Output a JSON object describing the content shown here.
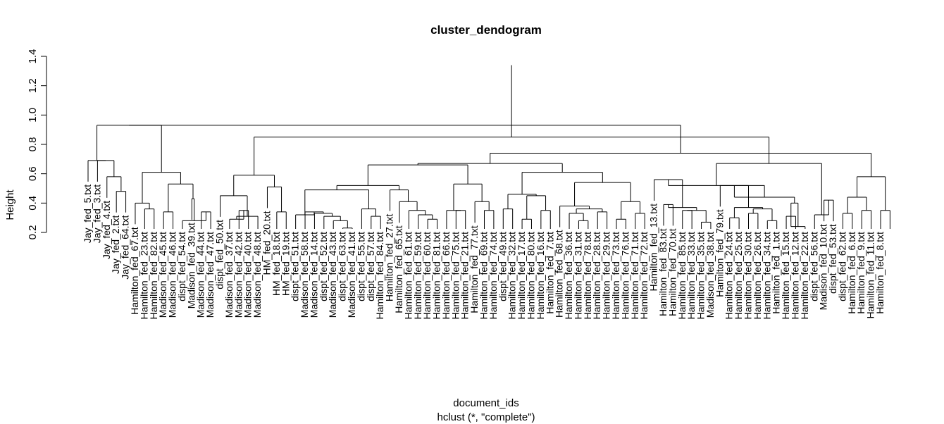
{
  "chart_data": {
    "type": "dendrogram",
    "title": "cluster_dendogram",
    "xlabel": "document_ids",
    "subtitle": "hclust (*, \"complete\")",
    "ylabel": "Height",
    "ylim": [
      0.2,
      1.4
    ],
    "yticks": [
      0.2,
      0.4,
      0.6,
      0.8,
      1.0,
      1.2,
      1.4
    ],
    "leaves": [
      {
        "label": "Jay_fed_5.txt",
        "h": 0.2
      },
      {
        "label": "Jay_fed_3.txt",
        "h": 0.2
      },
      {
        "label": "Jay_fed_4.txt",
        "h": 0.2
      },
      {
        "label": "Jay_fed_2.txt",
        "h": 0.2
      },
      {
        "label": "Jay_fed_64.txt",
        "h": 0.2
      },
      {
        "label": "Hamilton_fed_67.txt",
        "h": 0.2
      },
      {
        "label": "Hamilton_fed_23.txt",
        "h": 0.2
      },
      {
        "label": "Hamilton_fed_82.txt",
        "h": 0.2
      },
      {
        "label": "Madison_fed_45.txt",
        "h": 0.2
      },
      {
        "label": "Madison_fed_46.txt",
        "h": 0.2
      },
      {
        "label": "dispt_fed_54.txt",
        "h": 0.2
      },
      {
        "label": "Madison_fed_39.txt",
        "h": 0.2
      },
      {
        "label": "Madison_fed_44.txt",
        "h": 0.2
      },
      {
        "label": "Madison_fed_47.txt",
        "h": 0.2
      },
      {
        "label": "dispt_fed_50.txt",
        "h": 0.2
      },
      {
        "label": "Madison_fed_37.txt",
        "h": 0.2
      },
      {
        "label": "Madison_fed_42.txt",
        "h": 0.2
      },
      {
        "label": "Madison_fed_40.txt",
        "h": 0.2
      },
      {
        "label": "Madison_fed_48.txt",
        "h": 0.2
      },
      {
        "label": "HM_fed_20.txt",
        "h": 0.2
      },
      {
        "label": "HM_fed_18.txt",
        "h": 0.2
      },
      {
        "label": "HM_fed_19.txt",
        "h": 0.2
      },
      {
        "label": "dispt_fed_51.txt",
        "h": 0.2
      },
      {
        "label": "Madison_fed_58.txt",
        "h": 0.2
      },
      {
        "label": "Madison_fed_14.txt",
        "h": 0.2
      },
      {
        "label": "dispt_fed_52.txt",
        "h": 0.2
      },
      {
        "label": "Madison_fed_43.txt",
        "h": 0.2
      },
      {
        "label": "dispt_fed_63.txt",
        "h": 0.2
      },
      {
        "label": "Madison_fed_41.txt",
        "h": 0.2
      },
      {
        "label": "dispt_fed_55.txt",
        "h": 0.2
      },
      {
        "label": "dispt_fed_57.txt",
        "h": 0.2
      },
      {
        "label": "Hamilton_fed_84.txt",
        "h": 0.2
      },
      {
        "label": "Hamilton_fed_27.txt",
        "h": 0.2
      },
      {
        "label": "Hamilton_fed_65.txt",
        "h": 0.2
      },
      {
        "label": "Hamilton_fed_61.txt",
        "h": 0.2
      },
      {
        "label": "Hamilton_fed_59.txt",
        "h": 0.2
      },
      {
        "label": "Hamilton_fed_60.txt",
        "h": 0.2
      },
      {
        "label": "Hamilton_fed_81.txt",
        "h": 0.2
      },
      {
        "label": "Hamilton_fed_66.txt",
        "h": 0.2
      },
      {
        "label": "Hamilton_fed_75.txt",
        "h": 0.2
      },
      {
        "label": "Hamilton_fed_21.txt",
        "h": 0.2
      },
      {
        "label": "Hamilton_fed_77.txt",
        "h": 0.2
      },
      {
        "label": "Hamilton_fed_69.txt",
        "h": 0.2
      },
      {
        "label": "Hamilton_fed_74.txt",
        "h": 0.2
      },
      {
        "label": "dispt_fed_49.txt",
        "h": 0.2
      },
      {
        "label": "Hamilton_fed_32.txt",
        "h": 0.2
      },
      {
        "label": "Hamilton_fed_17.txt",
        "h": 0.2
      },
      {
        "label": "Hamilton_fed_80.txt",
        "h": 0.2
      },
      {
        "label": "Hamilton_fed_16.txt",
        "h": 0.2
      },
      {
        "label": "Hamilton_fed_7.txt",
        "h": 0.2
      },
      {
        "label": "Hamilton_fed_68.txt",
        "h": 0.2
      },
      {
        "label": "Hamilton_fed_36.txt",
        "h": 0.2
      },
      {
        "label": "Hamilton_fed_31.txt",
        "h": 0.2
      },
      {
        "label": "Hamilton_fed_78.txt",
        "h": 0.2
      },
      {
        "label": "Hamilton_fed_28.txt",
        "h": 0.2
      },
      {
        "label": "Hamilton_fed_29.txt",
        "h": 0.2
      },
      {
        "label": "Hamilton_fed_73.txt",
        "h": 0.2
      },
      {
        "label": "Hamilton_fed_76.txt",
        "h": 0.2
      },
      {
        "label": "Hamilton_fed_71.txt",
        "h": 0.2
      },
      {
        "label": "Hamilton_fed_72.txt",
        "h": 0.2
      },
      {
        "label": "Hamilton_fed_13.txt",
        "h": 0.2
      },
      {
        "label": "Hamilton_fed_83.txt",
        "h": 0.2
      },
      {
        "label": "Hamilton_fed_70.txt",
        "h": 0.2
      },
      {
        "label": "Hamilton_fed_85.txt",
        "h": 0.2
      },
      {
        "label": "Hamilton_fed_33.txt",
        "h": 0.2
      },
      {
        "label": "Hamilton_fed_35.txt",
        "h": 0.2
      },
      {
        "label": "Madison_fed_38.txt",
        "h": 0.2
      },
      {
        "label": "Hamilton_fed_79.txt",
        "h": 0.2
      },
      {
        "label": "Hamilton_fed_24.txt",
        "h": 0.2
      },
      {
        "label": "Hamilton_fed_25.txt",
        "h": 0.2
      },
      {
        "label": "Hamilton_fed_30.txt",
        "h": 0.2
      },
      {
        "label": "Hamilton_fed_26.txt",
        "h": 0.2
      },
      {
        "label": "Hamilton_fed_34.txt",
        "h": 0.2
      },
      {
        "label": "Hamilton_fed_1.txt",
        "h": 0.2
      },
      {
        "label": "Hamilton_fed_15.txt",
        "h": 0.2
      },
      {
        "label": "Hamilton_fed_12.txt",
        "h": 0.2
      },
      {
        "label": "Hamilton_fed_22.txt",
        "h": 0.2
      },
      {
        "label": "dispt_fed_56.txt",
        "h": 0.2
      },
      {
        "label": "Madison_fed_10.txt",
        "h": 0.2
      },
      {
        "label": "dispt_fed_53.txt",
        "h": 0.2
      },
      {
        "label": "dispt_fed_62.txt",
        "h": 0.2
      },
      {
        "label": "Hamilton_fed_6.txt",
        "h": 0.2
      },
      {
        "label": "Hamilton_fed_9.txt",
        "h": 0.2
      },
      {
        "label": "Hamilton_fed_11.txt",
        "h": 0.2
      },
      {
        "label": "Hamilton_fed_8.txt",
        "h": 0.2
      }
    ],
    "merges": [
      [
        3,
        4,
        0.48
      ],
      [
        2,
        "n0",
        0.58
      ],
      [
        1,
        "n1",
        0.69
      ],
      [
        0,
        "n2",
        0.69
      ],
      [
        6,
        7,
        0.36
      ],
      [
        5,
        "n4",
        0.4
      ],
      [
        8,
        9,
        0.34
      ],
      [
        12,
        13,
        0.34
      ],
      [
        10,
        "n7",
        0.28
      ],
      [
        11,
        "n8",
        0.43
      ],
      [
        "n6",
        "n9",
        0.53
      ],
      [
        "n5",
        "n10",
        0.61
      ],
      [
        "n3",
        "n11",
        0.93
      ],
      [
        16,
        17,
        0.35
      ],
      [
        15,
        "n13",
        0.29
      ],
      [
        18,
        "n14",
        0.31
      ],
      [
        14,
        "n15",
        0.45
      ],
      [
        20,
        21,
        0.34
      ],
      [
        19,
        "n17",
        0.51
      ],
      [
        "n16",
        "n18",
        0.59
      ],
      [
        27,
        28,
        0.23
      ],
      [
        26,
        "n20",
        0.28
      ],
      [
        25,
        "n21",
        0.31
      ],
      [
        24,
        "n22",
        0.33
      ],
      [
        23,
        "n23",
        0.34
      ],
      [
        22,
        "n24",
        0.32
      ],
      [
        30,
        31,
        0.31
      ],
      [
        29,
        "n26",
        0.36
      ],
      [
        "n25",
        "n27",
        0.49
      ],
      [
        36,
        37,
        0.29
      ],
      [
        35,
        "n29",
        0.32
      ],
      [
        34,
        "n30",
        0.35
      ],
      [
        33,
        "n31",
        0.41
      ],
      [
        32,
        "n32",
        0.49
      ],
      [
        "n28",
        "n33",
        0.52
      ],
      [
        39,
        40,
        0.35
      ],
      [
        42,
        43,
        0.35
      ],
      [
        41,
        "n36",
        0.41
      ],
      [
        38,
        "n35",
        0.35
      ],
      [
        "n38",
        "n37",
        0.53
      ],
      [
        "n34",
        "n39",
        0.66
      ],
      [
        44,
        45,
        0.36
      ],
      [
        46,
        47,
        0.29
      ],
      [
        48,
        49,
        0.35
      ],
      [
        "n42",
        "n43",
        0.45
      ],
      [
        "n41",
        "n44",
        0.46
      ],
      [
        52,
        53,
        0.28
      ],
      [
        51,
        "n46",
        0.33
      ],
      [
        54,
        55,
        0.34
      ],
      [
        "n47",
        "n48",
        0.36
      ],
      [
        50,
        "n49",
        0.38
      ],
      [
        56,
        57,
        0.29
      ],
      [
        58,
        59,
        0.33
      ],
      [
        "n51",
        "n52",
        0.41
      ],
      [
        "n50",
        "n53",
        0.54
      ],
      [
        "n45",
        "n54",
        0.61
      ],
      [
        "n40",
        "n55",
        0.67
      ],
      [
        61,
        62,
        0.39
      ],
      [
        63,
        64,
        0.35
      ],
      [
        65,
        66,
        0.27
      ],
      [
        "n58",
        "n59",
        0.35
      ],
      [
        "n57",
        "n60",
        0.37
      ],
      [
        60,
        "n61",
        0.56
      ],
      [
        68,
        69,
        0.3
      ],
      [
        70,
        71,
        0.33
      ],
      [
        72,
        73,
        0.28
      ],
      [
        "n64",
        "n65",
        0.36
      ],
      [
        "n63",
        "n66",
        0.37
      ],
      [
        67,
        "n67",
        0.52
      ],
      [
        74,
        75,
        0.31
      ],
      [
        76,
        "n69",
        0.24
      ],
      [
        "n70",
        "n69",
        0.4
      ],
      [
        "n68",
        "n71",
        0.44
      ],
      [
        "n62",
        "n72",
        0.52
      ],
      [
        78,
        79,
        0.42
      ],
      [
        80,
        81,
        0.33
      ],
      [
        82,
        83,
        0.35
      ],
      [
        84,
        85,
        0.35
      ],
      [
        "n75",
        "n76",
        0.44
      ],
      [
        77,
        "n74",
        0.32
      ],
      [
        "n78",
        "n77",
        0.58
      ],
      [
        "n73",
        "n79",
        0.67
      ],
      [
        "n56",
        "n80",
        0.74
      ],
      [
        "n19",
        "n81",
        0.85
      ],
      [
        "n12",
        "n82",
        0.93
      ],
      [
        "n83",
        "n83",
        1.34
      ]
    ]
  }
}
